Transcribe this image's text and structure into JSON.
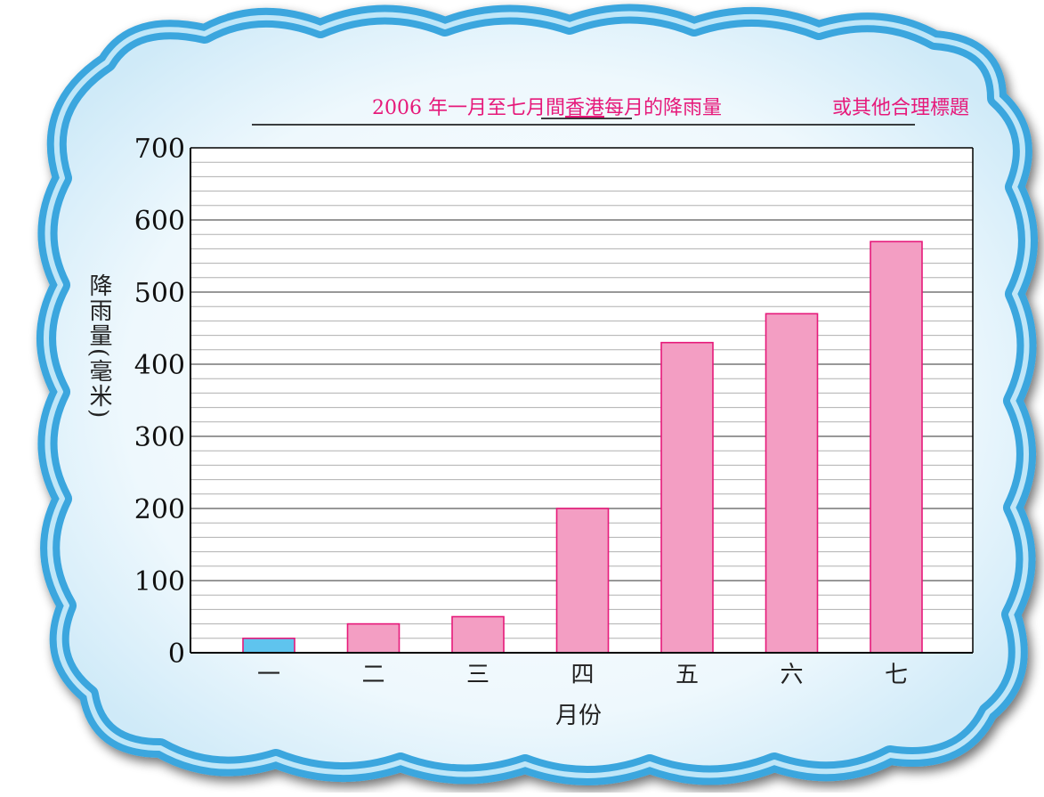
{
  "title": {
    "text_before_underline": "2006 年一月至七月間",
    "text_underlined": "香港",
    "text_after_underline": "每月的降雨量",
    "alt_note": "或其他合理標題"
  },
  "colors": {
    "bar_fill": "#f39ec3",
    "bar_stroke": "#e6197a",
    "first_bar_fill": "#5fc4ee",
    "first_bar_stroke": "#e6197a",
    "answer_text": "#e6197a",
    "cloud_border": "#3aa6de",
    "cloud_inner": "#e8f5fc",
    "grid_major": "#777777",
    "grid_minor": "#b0b0b0"
  },
  "chart_data": {
    "type": "bar",
    "title": "2006 年一月至七月間香港每月的降雨量",
    "xlabel": "月份",
    "ylabel": "降雨量(毫米)",
    "ylim": [
      0,
      700
    ],
    "major_tick_step": 100,
    "minor_tick_step": 20,
    "y_ticks": [
      0,
      100,
      200,
      300,
      400,
      500,
      600,
      700
    ],
    "categories": [
      "一",
      "二",
      "三",
      "四",
      "五",
      "六",
      "七"
    ],
    "values": [
      20,
      40,
      50,
      200,
      430,
      470,
      570
    ],
    "highlighted_index": 0,
    "grid": true
  }
}
